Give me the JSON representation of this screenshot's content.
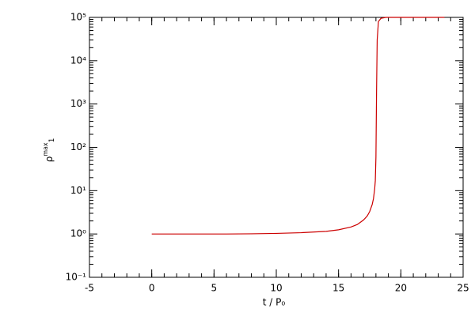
{
  "chart_data": {
    "type": "line",
    "x_label": "t / P₀",
    "y_label": {
      "base": "ρ",
      "sup": "max",
      "sub": "1"
    },
    "x": [
      0,
      2,
      4,
      6,
      8,
      10,
      12,
      14,
      15,
      16,
      16.5,
      17,
      17.3,
      17.5,
      17.7,
      17.8,
      17.9,
      17.95,
      18.0,
      18.05,
      18.1,
      18.2,
      18.4,
      18.8,
      20,
      22,
      23.5
    ],
    "series": [
      {
        "color": "#cc0000",
        "values": [
          1,
          1,
          1,
          1,
          1.01,
          1.03,
          1.07,
          1.15,
          1.25,
          1.45,
          1.65,
          2.1,
          2.6,
          3.3,
          4.8,
          6.5,
          11,
          17,
          60,
          2000,
          30000,
          80000,
          95000,
          100000,
          100000,
          100000,
          100000
        ]
      }
    ],
    "xlim": [
      -5,
      25
    ],
    "xticks": [
      -5,
      0,
      5,
      10,
      15,
      20,
      25
    ],
    "ylim": [
      0.1,
      100000
    ],
    "y_log": true,
    "yticks": [
      {
        "value": 0.1,
        "label": "10⁻¹"
      },
      {
        "value": 1,
        "label": "10⁰"
      },
      {
        "value": 10,
        "label": "10¹"
      },
      {
        "value": 100,
        "label": "10²"
      },
      {
        "value": 1000,
        "label": "10³"
      },
      {
        "value": 10000,
        "label": "10⁴"
      },
      {
        "value": 100000,
        "label": "10⁵"
      }
    ],
    "minor_ticks": true,
    "mirror_ticks": true
  }
}
